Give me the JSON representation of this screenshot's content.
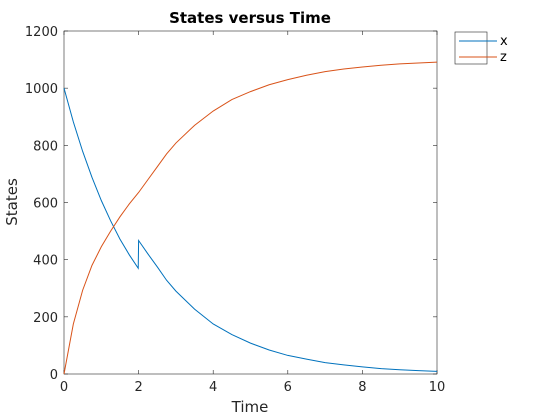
{
  "chart_data": {
    "type": "line",
    "title": "States versus Time",
    "xlabel": "Time",
    "ylabel": "States",
    "xlim": [
      0,
      10
    ],
    "ylim": [
      0,
      1200
    ],
    "xticks": [
      0,
      2,
      4,
      6,
      8,
      10
    ],
    "yticks": [
      0,
      200,
      400,
      600,
      800,
      1000,
      1200
    ],
    "grid": false,
    "legend_position": "top-right outside",
    "series": [
      {
        "name": "x",
        "color": "#0072BD",
        "x": [
          0,
          0.25,
          0.5,
          0.75,
          1,
          1.25,
          1.5,
          1.75,
          1.99,
          2.0,
          2.25,
          2.5,
          2.75,
          3,
          3.5,
          4,
          4.5,
          5,
          5.5,
          6,
          6.5,
          7,
          7.5,
          8,
          8.5,
          9,
          9.5,
          10
        ],
        "y": [
          1000,
          882,
          779,
          688,
          607,
          536,
          472,
          417,
          370,
          467,
          420,
          375,
          328,
          290,
          227,
          175,
          138,
          108,
          84,
          65,
          52,
          40,
          32,
          25,
          19,
          15,
          12,
          9
        ]
      },
      {
        "name": "z",
        "color": "#D95319",
        "x": [
          0,
          0.25,
          0.5,
          0.75,
          1,
          1.25,
          1.5,
          1.75,
          2,
          2.25,
          2.5,
          2.75,
          3,
          3.5,
          4,
          4.5,
          5,
          5.5,
          6,
          6.5,
          7,
          7.5,
          8,
          8.5,
          9,
          9.5,
          10
        ],
        "y": [
          0,
          175,
          293,
          380,
          445,
          500,
          550,
          595,
          635,
          680,
          725,
          770,
          808,
          870,
          920,
          960,
          988,
          1012,
          1030,
          1045,
          1058,
          1067,
          1074,
          1080,
          1085,
          1088,
          1091
        ]
      }
    ]
  }
}
